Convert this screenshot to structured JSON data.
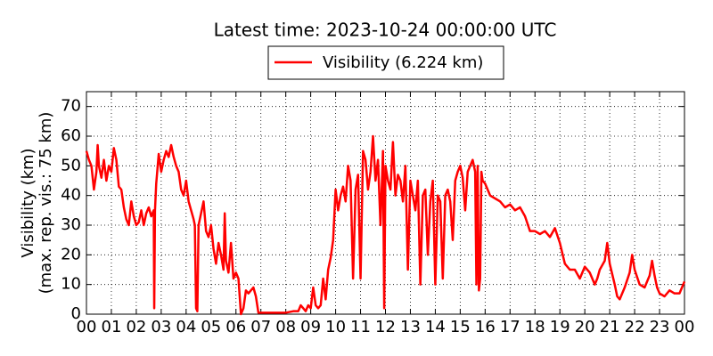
{
  "chart_data": {
    "type": "line",
    "title": "Latest time: 2023-10-24 00:00:00 UTC",
    "ylabel": [
      "Visibility (km)",
      "(max. rep. vis.: 75 km)"
    ],
    "x": [
      0,
      0.1,
      0.2,
      0.3,
      0.4,
      0.45,
      0.5,
      0.6,
      0.7,
      0.8,
      0.9,
      1.0,
      1.1,
      1.2,
      1.3,
      1.4,
      1.5,
      1.6,
      1.7,
      1.8,
      1.9,
      2.0,
      2.1,
      2.2,
      2.3,
      2.4,
      2.5,
      2.6,
      2.7,
      2.72,
      2.75,
      2.8,
      2.9,
      3.0,
      3.1,
      3.2,
      3.3,
      3.4,
      3.5,
      3.6,
      3.7,
      3.8,
      3.9,
      4.0,
      4.1,
      4.2,
      4.3,
      4.35,
      4.4,
      4.45,
      4.5,
      4.6,
      4.7,
      4.8,
      4.9,
      5.0,
      5.1,
      5.2,
      5.3,
      5.4,
      5.5,
      5.55,
      5.6,
      5.7,
      5.8,
      5.9,
      6.0,
      6.1,
      6.15,
      6.2,
      6.3,
      6.4,
      6.5,
      6.6,
      6.7,
      6.8,
      6.9,
      7.0,
      7.5,
      8.0,
      8.3,
      8.5,
      8.6,
      8.7,
      8.8,
      8.9,
      9.0,
      9.1,
      9.2,
      9.3,
      9.4,
      9.5,
      9.6,
      9.7,
      9.8,
      9.9,
      10.0,
      10.1,
      10.2,
      10.3,
      10.4,
      10.5,
      10.6,
      10.7,
      10.8,
      10.9,
      11.0,
      11.1,
      11.2,
      11.3,
      11.4,
      11.5,
      11.6,
      11.7,
      11.8,
      11.9,
      11.95,
      12.0,
      12.1,
      12.2,
      12.3,
      12.4,
      12.5,
      12.6,
      12.7,
      12.8,
      12.9,
      13.0,
      13.1,
      13.2,
      13.3,
      13.4,
      13.5,
      13.6,
      13.7,
      13.8,
      13.9,
      14.0,
      14.1,
      14.2,
      14.3,
      14.4,
      14.5,
      14.6,
      14.7,
      14.8,
      14.9,
      15.0,
      15.1,
      15.2,
      15.3,
      15.4,
      15.5,
      15.6,
      15.65,
      15.7,
      15.75,
      15.8,
      15.85,
      15.9,
      16.0,
      16.2,
      16.4,
      16.6,
      16.8,
      17.0,
      17.2,
      17.4,
      17.6,
      17.8,
      18.0,
      18.2,
      18.4,
      18.6,
      18.8,
      19.0,
      19.2,
      19.4,
      19.6,
      19.8,
      20.0,
      20.2,
      20.4,
      20.5,
      20.6,
      20.8,
      20.9,
      21.0,
      21.2,
      21.3,
      21.4,
      21.6,
      21.8,
      21.9,
      22.0,
      22.2,
      22.4,
      22.6,
      22.7,
      22.8,
      22.9,
      23.0,
      23.2,
      23.4,
      23.6,
      23.8,
      24.0
    ],
    "series": [
      {
        "name": "Visibility (6.224 km)",
        "color": "#ff0000",
        "values": [
          55,
          52,
          50,
          42,
          48,
          57,
          50,
          46,
          52,
          45,
          50,
          48,
          56,
          52,
          43,
          42,
          36,
          32,
          30,
          38,
          33,
          30,
          31,
          35,
          30,
          34,
          36,
          33,
          35,
          2,
          35,
          44,
          54,
          48,
          52,
          55,
          53,
          57,
          53,
          50,
          48,
          42,
          40,
          45,
          38,
          35,
          32,
          30,
          2,
          1,
          30,
          34,
          38,
          28,
          26,
          30,
          22,
          17,
          24,
          20,
          15,
          34,
          18,
          14,
          24,
          12,
          14,
          12,
          6,
          0,
          2,
          8,
          7,
          8,
          9,
          6,
          0.5,
          0.5,
          0.5,
          0.5,
          1,
          1,
          3,
          2,
          1,
          3,
          2,
          9,
          3,
          2,
          3,
          12,
          5,
          15,
          19,
          25,
          42,
          35,
          40,
          43,
          38,
          50,
          45,
          12,
          42,
          47,
          12,
          55,
          52,
          42,
          48,
          60,
          45,
          52,
          30,
          55,
          2,
          50,
          45,
          42,
          58,
          40,
          47,
          45,
          38,
          50,
          15,
          45,
          40,
          35,
          45,
          10,
          40,
          42,
          20,
          38,
          45,
          10,
          40,
          38,
          12,
          40,
          42,
          38,
          25,
          45,
          48,
          50,
          46,
          35,
          48,
          50,
          52,
          48,
          10,
          50,
          8,
          12,
          48,
          45,
          44,
          40,
          39,
          38,
          36,
          37,
          35,
          36,
          33,
          28,
          28,
          27,
          28,
          26,
          29,
          24,
          17,
          15,
          15,
          12,
          16,
          14,
          10,
          12,
          15,
          18,
          24,
          17,
          10,
          6,
          5,
          9,
          14,
          20,
          15,
          10,
          9,
          13,
          18,
          13,
          9,
          7,
          6,
          8,
          7,
          7,
          11
        ]
      }
    ],
    "xlim": [
      0,
      24
    ],
    "xticks": [
      {
        "value": 0,
        "label": "00"
      },
      {
        "value": 1,
        "label": "01"
      },
      {
        "value": 2,
        "label": "02"
      },
      {
        "value": 3,
        "label": "03"
      },
      {
        "value": 4,
        "label": "04"
      },
      {
        "value": 5,
        "label": "05"
      },
      {
        "value": 6,
        "label": "06"
      },
      {
        "value": 7,
        "label": "07"
      },
      {
        "value": 8,
        "label": "08"
      },
      {
        "value": 9,
        "label": "09"
      },
      {
        "value": 10,
        "label": "10"
      },
      {
        "value": 11,
        "label": "11"
      },
      {
        "value": 12,
        "label": "12"
      },
      {
        "value": 13,
        "label": "13"
      },
      {
        "value": 14,
        "label": "14"
      },
      {
        "value": 15,
        "label": "15"
      },
      {
        "value": 16,
        "label": "16"
      },
      {
        "value": 17,
        "label": "17"
      },
      {
        "value": 18,
        "label": "18"
      },
      {
        "value": 19,
        "label": "19"
      },
      {
        "value": 20,
        "label": "20"
      },
      {
        "value": 21,
        "label": "21"
      },
      {
        "value": 22,
        "label": "22"
      },
      {
        "value": 23,
        "label": "23"
      },
      {
        "value": 24,
        "label": "00"
      }
    ],
    "ylim": [
      0,
      75
    ],
    "yticks": [
      0,
      10,
      20,
      30,
      40,
      50,
      60,
      70
    ],
    "grid": true,
    "legend": "top"
  }
}
